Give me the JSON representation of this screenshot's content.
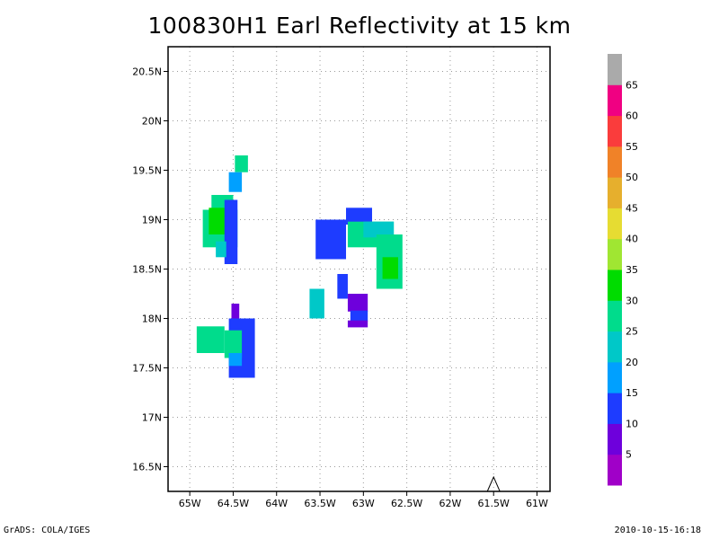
{
  "chart_data": {
    "type": "heatmap",
    "title": "100830H1 Earl Reflectivity at 15 km",
    "xlim": [
      -65.25,
      -60.85
    ],
    "ylim": [
      16.25,
      20.75
    ],
    "x_ticks": [
      {
        "value": -65,
        "label": "65W"
      },
      {
        "value": -64.5,
        "label": "64.5W"
      },
      {
        "value": -64,
        "label": "64W"
      },
      {
        "value": -63.5,
        "label": "63.5W"
      },
      {
        "value": -63,
        "label": "63W"
      },
      {
        "value": -62.5,
        "label": "62.5W"
      },
      {
        "value": -62,
        "label": "62W"
      },
      {
        "value": -61.5,
        "label": "61.5W"
      },
      {
        "value": -61,
        "label": "61W"
      }
    ],
    "y_ticks": [
      {
        "value": 16.5,
        "label": "16.5N"
      },
      {
        "value": 17,
        "label": "17N"
      },
      {
        "value": 17.5,
        "label": "17.5N"
      },
      {
        "value": 18,
        "label": "18N"
      },
      {
        "value": 18.5,
        "label": "18.5N"
      },
      {
        "value": 19,
        "label": "19N"
      },
      {
        "value": 19.5,
        "label": "19.5N"
      },
      {
        "value": 20,
        "label": "20N"
      },
      {
        "value": 20.5,
        "label": "20.5N"
      }
    ],
    "grid": true,
    "colorbar": {
      "labels": [
        "5",
        "10",
        "15",
        "20",
        "25",
        "30",
        "35",
        "40",
        "45",
        "50",
        "55",
        "60",
        "65"
      ],
      "colors": [
        "#a000c8",
        "#6e00dc",
        "#1e3cff",
        "#00a0ff",
        "#00c8c8",
        "#00dc8c",
        "#00dc00",
        "#a0e632",
        "#e6dc32",
        "#e6af2d",
        "#f08228",
        "#fa3c3c",
        "#f00082",
        "#aaaaaa"
      ]
    },
    "cells": [
      {
        "lon": [
          -64.48,
          -64.33
        ],
        "lat": [
          19.48,
          19.65
        ],
        "value": 25
      },
      {
        "lon": [
          -64.55,
          -64.4
        ],
        "lat": [
          19.28,
          19.48
        ],
        "value": 15
      },
      {
        "lon": [
          -64.75,
          -64.5
        ],
        "lat": [
          19.1,
          19.25
        ],
        "value": 25
      },
      {
        "lon": [
          -64.85,
          -64.45
        ],
        "lat": [
          18.72,
          19.1
        ],
        "value": 25
      },
      {
        "lon": [
          -64.78,
          -64.58
        ],
        "lat": [
          18.85,
          19.12
        ],
        "value": 30
      },
      {
        "lon": [
          -64.6,
          -64.45
        ],
        "lat": [
          18.55,
          19.2
        ],
        "value": 10
      },
      {
        "lon": [
          -64.7,
          -64.58
        ],
        "lat": [
          18.62,
          18.78
        ],
        "value": 20
      },
      {
        "lon": [
          -64.52,
          -64.43
        ],
        "lat": [
          18.0,
          18.15
        ],
        "value": 5
      },
      {
        "lon": [
          -64.55,
          -64.25
        ],
        "lat": [
          17.4,
          18.0
        ],
        "value": 10
      },
      {
        "lon": [
          -64.92,
          -64.6
        ],
        "lat": [
          17.65,
          17.92
        ],
        "value": 25
      },
      {
        "lon": [
          -64.6,
          -64.4
        ],
        "lat": [
          17.6,
          17.88
        ],
        "value": 25
      },
      {
        "lon": [
          -64.55,
          -64.4
        ],
        "lat": [
          17.52,
          17.65
        ],
        "value": 15
      },
      {
        "lon": [
          -63.55,
          -63.2
        ],
        "lat": [
          18.6,
          19.0
        ],
        "value": 10
      },
      {
        "lon": [
          -63.2,
          -62.9
        ],
        "lat": [
          18.95,
          19.12
        ],
        "value": 10
      },
      {
        "lon": [
          -63.18,
          -62.65
        ],
        "lat": [
          18.72,
          18.98
        ],
        "value": 25
      },
      {
        "lon": [
          -63.0,
          -62.65
        ],
        "lat": [
          18.82,
          18.98
        ],
        "value": 20
      },
      {
        "lon": [
          -62.85,
          -62.55
        ],
        "lat": [
          18.3,
          18.85
        ],
        "value": 25
      },
      {
        "lon": [
          -62.78,
          -62.6
        ],
        "lat": [
          18.4,
          18.62
        ],
        "value": 30
      },
      {
        "lon": [
          -63.3,
          -63.18
        ],
        "lat": [
          18.2,
          18.45
        ],
        "value": 10
      },
      {
        "lon": [
          -63.18,
          -62.95
        ],
        "lat": [
          18.07,
          18.25
        ],
        "value": 5
      },
      {
        "lon": [
          -63.15,
          -62.95
        ],
        "lat": [
          17.97,
          18.08
        ],
        "value": 10
      },
      {
        "lon": [
          -63.18,
          -62.95
        ],
        "lat": [
          17.91,
          17.98
        ],
        "value": 5
      },
      {
        "lon": [
          -63.62,
          -63.45
        ],
        "lat": [
          18.0,
          18.3
        ],
        "value": 20
      }
    ],
    "marker": {
      "lon": -61.5,
      "lat": 16.36,
      "shape": "triangle"
    }
  },
  "footer": {
    "left": "GrADS: COLA/IGES",
    "right": "2010-10-15-16:18"
  }
}
